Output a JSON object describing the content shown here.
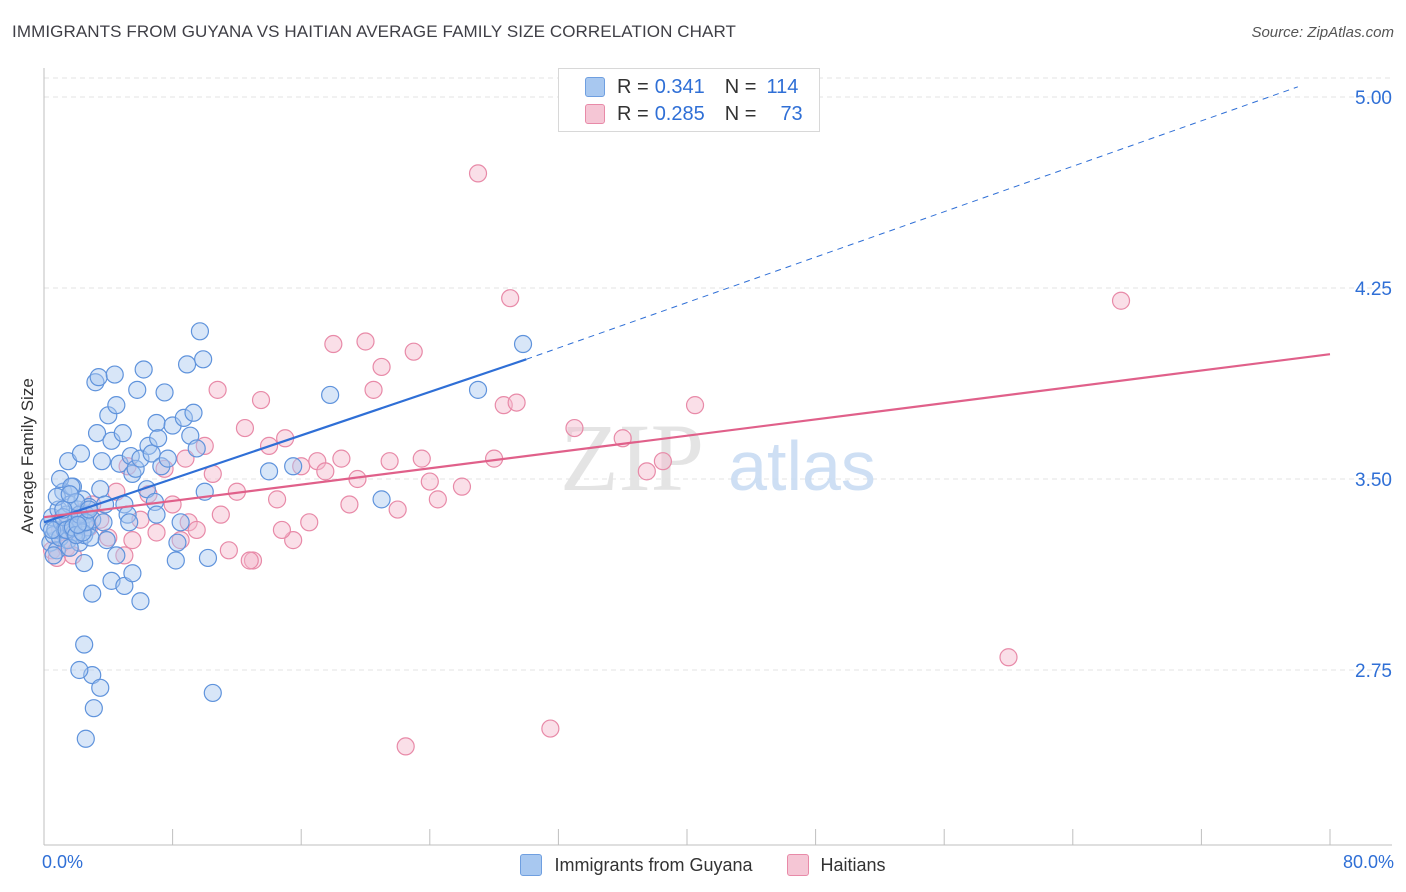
{
  "header": {
    "title": "IMMIGRANTS FROM GUYANA VS HAITIAN AVERAGE FAMILY SIZE CORRELATION CHART",
    "source": "Source: ZipAtlas.com"
  },
  "legend": {
    "rows": [
      {
        "r_label": "R =",
        "r_value": "0.341",
        "n_label": "N =",
        "n_value": "114"
      },
      {
        "r_label": "R =",
        "r_value": "0.285",
        "n_label": "N =",
        "n_value": "73"
      }
    ]
  },
  "bottom_legend": {
    "items": [
      {
        "label": "Immigrants from Guyana"
      },
      {
        "label": "Haitians"
      }
    ]
  },
  "watermark": {
    "zip": "ZIP",
    "atlas": "atlas"
  },
  "colors": {
    "blue_fill": "#a8c8f0",
    "blue_stroke": "#6f9fe0",
    "blue_line": "#2f6fd6",
    "pink_fill": "#f5b8cb",
    "pink_stroke": "#e88aa8",
    "pink_line": "#e0608a",
    "tick_text": "#2f6fd6",
    "grid": "#e3e3e3"
  },
  "chart_data": {
    "type": "scatter",
    "title": "IMMIGRANTS FROM GUYANA VS HAITIAN AVERAGE FAMILY SIZE CORRELATION CHART",
    "xlabel": "",
    "ylabel": "Average Family Size",
    "xlim": [
      0,
      80
    ],
    "ylim": [
      2.0,
      5.1
    ],
    "x_tick_labels": [
      "0.0%",
      "80.0%"
    ],
    "y_ticks": [
      2.75,
      3.5,
      4.25,
      5.0
    ],
    "y_tick_labels": [
      "2.75",
      "3.50",
      "4.25",
      "5.00"
    ],
    "grid": true,
    "legend_position": "top-center",
    "series": [
      {
        "name": "Immigrants from Guyana",
        "color": "#6f9fe0",
        "trend": {
          "x": [
            0,
            30
          ],
          "y": [
            3.33,
            3.97
          ],
          "extended_to": [
            78,
            5.04
          ]
        },
        "points": [
          [
            0.3,
            3.32
          ],
          [
            0.4,
            3.25
          ],
          [
            0.5,
            3.35
          ],
          [
            0.6,
            3.28
          ],
          [
            0.7,
            3.3
          ],
          [
            0.8,
            3.22
          ],
          [
            0.9,
            3.38
          ],
          [
            1.0,
            3.27
          ],
          [
            1.1,
            3.33
          ],
          [
            1.2,
            3.45
          ],
          [
            1.3,
            3.3
          ],
          [
            1.4,
            3.36
          ],
          [
            1.5,
            3.26
          ],
          [
            1.6,
            3.4
          ],
          [
            1.7,
            3.31
          ],
          [
            1.8,
            3.47
          ],
          [
            1.9,
            3.29
          ],
          [
            2.0,
            3.34
          ],
          [
            2.1,
            3.38
          ],
          [
            2.2,
            3.25
          ],
          [
            2.3,
            3.32
          ],
          [
            2.4,
            3.42
          ],
          [
            2.5,
            3.28
          ],
          [
            2.6,
            3.36
          ],
          [
            2.7,
            3.31
          ],
          [
            2.8,
            3.39
          ],
          [
            2.9,
            3.27
          ],
          [
            3.0,
            3.34
          ],
          [
            0.5,
            3.3
          ],
          [
            0.6,
            3.2
          ],
          [
            0.8,
            3.43
          ],
          [
            1.0,
            3.5
          ],
          [
            1.2,
            3.35
          ],
          [
            1.4,
            3.3
          ],
          [
            1.6,
            3.23
          ],
          [
            1.8,
            3.31
          ],
          [
            2.0,
            3.28
          ],
          [
            2.2,
            3.36
          ],
          [
            2.4,
            3.29
          ],
          [
            2.6,
            3.33
          ],
          [
            1.5,
            3.57
          ],
          [
            1.7,
            3.47
          ],
          [
            2.0,
            3.41
          ],
          [
            2.3,
            3.6
          ],
          [
            2.5,
            3.17
          ],
          [
            2.8,
            3.38
          ],
          [
            3.0,
            3.05
          ],
          [
            3.2,
            3.88
          ],
          [
            3.4,
            3.9
          ],
          [
            3.6,
            3.57
          ],
          [
            3.3,
            3.68
          ],
          [
            3.5,
            3.46
          ],
          [
            3.7,
            3.33
          ],
          [
            3.9,
            3.26
          ],
          [
            4.0,
            3.75
          ],
          [
            4.2,
            3.65
          ],
          [
            4.4,
            3.91
          ],
          [
            4.5,
            3.79
          ],
          [
            4.7,
            3.56
          ],
          [
            4.9,
            3.68
          ],
          [
            5.0,
            3.4
          ],
          [
            5.2,
            3.36
          ],
          [
            5.3,
            3.33
          ],
          [
            5.4,
            3.59
          ],
          [
            5.5,
            3.52
          ],
          [
            5.7,
            3.54
          ],
          [
            5.8,
            3.85
          ],
          [
            6.0,
            3.58
          ],
          [
            6.2,
            3.93
          ],
          [
            6.4,
            3.46
          ],
          [
            6.5,
            3.63
          ],
          [
            6.7,
            3.6
          ],
          [
            6.9,
            3.41
          ],
          [
            7.0,
            3.72
          ],
          [
            7.1,
            3.66
          ],
          [
            7.3,
            3.55
          ],
          [
            7.5,
            3.84
          ],
          [
            7.7,
            3.58
          ],
          [
            8.0,
            3.71
          ],
          [
            8.2,
            3.18
          ],
          [
            8.3,
            3.25
          ],
          [
            8.5,
            3.33
          ],
          [
            8.7,
            3.74
          ],
          [
            8.9,
            3.95
          ],
          [
            9.1,
            3.67
          ],
          [
            9.3,
            3.76
          ],
          [
            9.5,
            3.62
          ],
          [
            9.7,
            4.08
          ],
          [
            9.9,
            3.97
          ],
          [
            10.0,
            3.45
          ],
          [
            10.2,
            3.19
          ],
          [
            2.5,
            2.85
          ],
          [
            3.0,
            2.73
          ],
          [
            2.2,
            2.75
          ],
          [
            3.5,
            2.68
          ],
          [
            3.1,
            2.6
          ],
          [
            2.6,
            2.48
          ],
          [
            4.2,
            3.1
          ],
          [
            4.5,
            3.2
          ],
          [
            5.0,
            3.08
          ],
          [
            5.5,
            3.13
          ],
          [
            6.0,
            3.02
          ],
          [
            7.0,
            3.36
          ],
          [
            3.8,
            3.4
          ],
          [
            10.5,
            2.66
          ],
          [
            17.8,
            3.83
          ],
          [
            21.0,
            3.42
          ],
          [
            29.8,
            4.03
          ],
          [
            27.0,
            3.85
          ],
          [
            14.0,
            3.53
          ],
          [
            15.5,
            3.55
          ],
          [
            1.2,
            3.38
          ],
          [
            1.6,
            3.44
          ],
          [
            2.1,
            3.32
          ]
        ]
      },
      {
        "name": "Haitians",
        "color": "#e88aa8",
        "trend": {
          "x": [
            0,
            80
          ],
          "y": [
            3.35,
            3.99
          ]
        },
        "points": [
          [
            0.5,
            3.22
          ],
          [
            0.8,
            3.19
          ],
          [
            1.0,
            3.3
          ],
          [
            1.2,
            3.26
          ],
          [
            1.4,
            3.23
          ],
          [
            1.6,
            3.33
          ],
          [
            1.8,
            3.2
          ],
          [
            2.0,
            3.28
          ],
          [
            2.4,
            3.37
          ],
          [
            2.8,
            3.31
          ],
          [
            3.0,
            3.4
          ],
          [
            3.5,
            3.34
          ],
          [
            4.0,
            3.27
          ],
          [
            4.5,
            3.45
          ],
          [
            5.0,
            3.2
          ],
          [
            5.5,
            3.26
          ],
          [
            6.0,
            3.34
          ],
          [
            6.5,
            3.44
          ],
          [
            7.0,
            3.29
          ],
          [
            7.5,
            3.54
          ],
          [
            8.0,
            3.4
          ],
          [
            8.5,
            3.26
          ],
          [
            9.0,
            3.33
          ],
          [
            9.5,
            3.3
          ],
          [
            10.0,
            3.63
          ],
          [
            10.5,
            3.52
          ],
          [
            11.0,
            3.36
          ],
          [
            11.5,
            3.22
          ],
          [
            12.0,
            3.45
          ],
          [
            12.5,
            3.7
          ],
          [
            13.0,
            3.18
          ],
          [
            13.5,
            3.81
          ],
          [
            14.0,
            3.63
          ],
          [
            14.5,
            3.42
          ],
          [
            15.0,
            3.66
          ],
          [
            15.5,
            3.26
          ],
          [
            16.0,
            3.55
          ],
          [
            16.5,
            3.33
          ],
          [
            17.0,
            3.57
          ],
          [
            17.5,
            3.53
          ],
          [
            18.0,
            4.03
          ],
          [
            18.5,
            3.58
          ],
          [
            19.0,
            3.4
          ],
          [
            19.5,
            3.5
          ],
          [
            20.0,
            4.04
          ],
          [
            20.5,
            3.85
          ],
          [
            21.0,
            3.94
          ],
          [
            21.5,
            3.57
          ],
          [
            22.0,
            3.38
          ],
          [
            23.0,
            4.0
          ],
          [
            23.5,
            3.58
          ],
          [
            24.0,
            3.49
          ],
          [
            24.5,
            3.42
          ],
          [
            26.0,
            3.47
          ],
          [
            27.0,
            4.7
          ],
          [
            28.0,
            3.58
          ],
          [
            29.0,
            4.21
          ],
          [
            28.6,
            3.79
          ],
          [
            29.4,
            3.8
          ],
          [
            33.0,
            3.7
          ],
          [
            36.0,
            3.66
          ],
          [
            37.5,
            3.53
          ],
          [
            38.5,
            3.57
          ],
          [
            40.5,
            3.79
          ],
          [
            60.0,
            2.8
          ],
          [
            67.0,
            4.2
          ],
          [
            22.5,
            2.45
          ],
          [
            31.5,
            2.52
          ],
          [
            10.8,
            3.85
          ],
          [
            12.8,
            3.18
          ],
          [
            5.2,
            3.55
          ],
          [
            8.8,
            3.58
          ],
          [
            14.8,
            3.3
          ]
        ]
      }
    ]
  }
}
